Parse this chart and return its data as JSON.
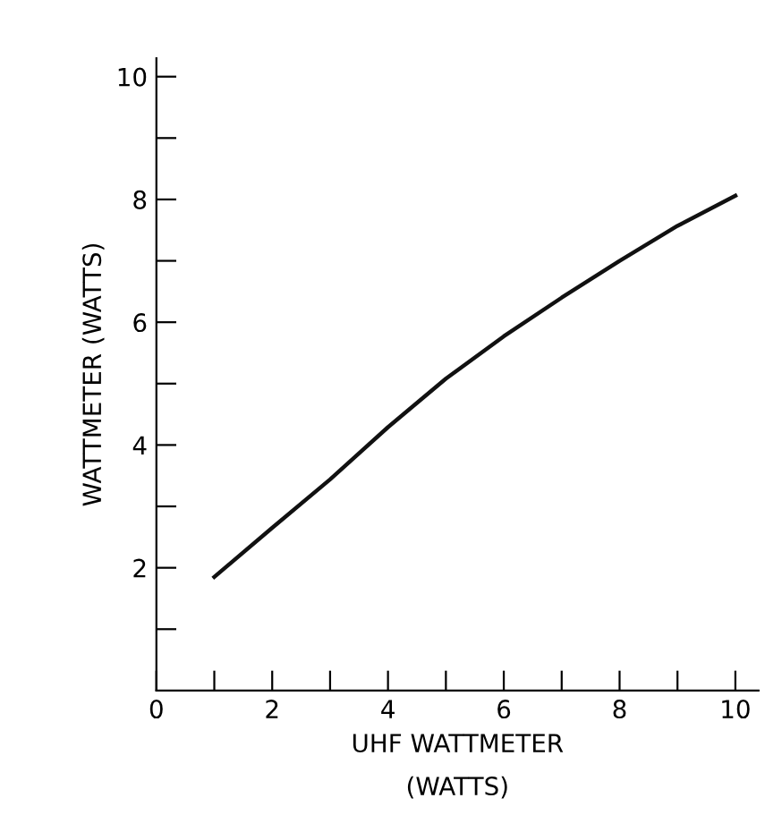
{
  "chart_data": {
    "type": "line",
    "xlabel": "UHF WATTMETER\n(WATTS)",
    "ylabel": "WATTMETER (WATTS)",
    "x": [
      1,
      2,
      3,
      4,
      5,
      6,
      7,
      8,
      9,
      10
    ],
    "series": [
      {
        "color": "#111111",
        "values": [
          1.85,
          2.65,
          3.44,
          4.29,
          5.08,
          5.77,
          6.4,
          7.0,
          7.57,
          8.06
        ]
      }
    ],
    "xlim": [
      0,
      10.4
    ],
    "ylim": [
      0,
      10.3
    ],
    "xticks": [
      0,
      {
        "value": 1,
        "label": null
      },
      2,
      {
        "value": 3,
        "label": null
      },
      4,
      {
        "value": 5,
        "label": null
      },
      6,
      {
        "value": 7,
        "label": null
      },
      8,
      {
        "value": 9,
        "label": null
      },
      10
    ],
    "yticks": [
      {
        "value": 1,
        "label": null
      },
      2,
      {
        "value": 3,
        "label": null
      },
      4,
      {
        "value": 5,
        "label": null
      },
      6,
      {
        "value": 7,
        "label": null
      },
      8,
      {
        "value": 9,
        "label": null
      },
      10
    ],
    "grid": false,
    "legend": false,
    "marker": "none",
    "line_style": "solid"
  }
}
